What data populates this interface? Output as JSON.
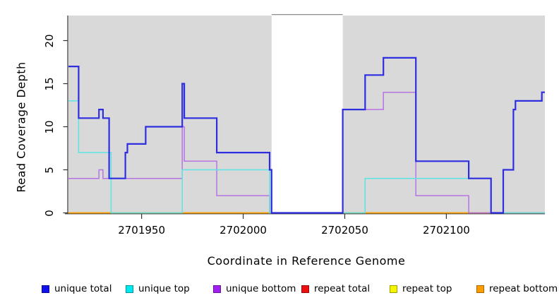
{
  "chart_data": {
    "type": "line",
    "subtype": "step-after",
    "title": "",
    "xlabel": "Coordinate in Reference Genome",
    "ylabel": "Read Coverage Depth",
    "x_range": [
      2701914,
      2702148.5
    ],
    "ylim": [
      0,
      23
    ],
    "x_ticks": [
      2701950,
      2702000,
      2702050,
      2702100
    ],
    "y_ticks": [
      0,
      5,
      10,
      15,
      20
    ],
    "grid": false,
    "panel_bg": "#d9d9d9",
    "axis_color": "#333333",
    "highlight_band": {
      "x_start": 2702014,
      "x_end": 2702049,
      "color": "#ffffff",
      "border_color": "#8c8c8c"
    },
    "draw_order": [
      "repeat total",
      "repeat top",
      "repeat bottom",
      "unique bottom",
      "unique top",
      "unique total"
    ],
    "series": [
      {
        "name": "unique total",
        "color": "#2e2ee0",
        "line_width": 2.2,
        "steps": [
          [
            2701914,
            17
          ],
          [
            2701919,
            11
          ],
          [
            2701929,
            12
          ],
          [
            2701931,
            11
          ],
          [
            2701934,
            4
          ],
          [
            2701942,
            7
          ],
          [
            2701943,
            8
          ],
          [
            2701952,
            10
          ],
          [
            2701970,
            15
          ],
          [
            2701971,
            11
          ],
          [
            2701987,
            7
          ],
          [
            2702013,
            5
          ],
          [
            2702014,
            0
          ],
          [
            2702049,
            12
          ],
          [
            2702060,
            16
          ],
          [
            2702069,
            18
          ],
          [
            2702085,
            6
          ],
          [
            2702111,
            4
          ],
          [
            2702122,
            0
          ],
          [
            2702128,
            5
          ],
          [
            2702133,
            12
          ],
          [
            2702134,
            13
          ],
          [
            2702147,
            14
          ]
        ]
      },
      {
        "name": "unique top",
        "color": "#5ce4e4",
        "line_width": 1.5,
        "steps": [
          [
            2701914,
            13
          ],
          [
            2701919,
            7
          ],
          [
            2701935,
            0
          ],
          [
            2701970,
            5
          ],
          [
            2702013,
            0
          ],
          [
            2702060,
            4
          ],
          [
            2702122,
            0
          ]
        ]
      },
      {
        "name": "unique bottom",
        "color": "#b673e4",
        "line_width": 1.5,
        "steps": [
          [
            2701914,
            4
          ],
          [
            2701929,
            5
          ],
          [
            2701931,
            4
          ],
          [
            2701970,
            10
          ],
          [
            2701971,
            6
          ],
          [
            2701987,
            2
          ],
          [
            2702013,
            0
          ],
          [
            2702049,
            12
          ],
          [
            2702069,
            14
          ],
          [
            2702085,
            2
          ],
          [
            2702111,
            0
          ]
        ]
      },
      {
        "name": "repeat total",
        "color": "#e02020",
        "line_width": 1.5,
        "steps": [
          [
            2701914,
            0
          ]
        ]
      },
      {
        "name": "repeat top",
        "color": "#f0f020",
        "line_width": 1.5,
        "steps": [
          [
            2701914,
            0
          ]
        ]
      },
      {
        "name": "repeat bottom",
        "color": "#ff9e00",
        "line_width": 1.5,
        "steps": [
          [
            2701914,
            0
          ]
        ]
      }
    ],
    "legend": {
      "position": "bottom",
      "items": [
        {
          "label": "unique total",
          "color": "#1111ee"
        },
        {
          "label": "unique top",
          "color": "#00e8f0"
        },
        {
          "label": "unique bottom",
          "color": "#a020f0"
        },
        {
          "label": "repeat total",
          "color": "#ee1010"
        },
        {
          "label": "repeat top",
          "color": "#f5f500"
        },
        {
          "label": "repeat bottom",
          "color": "#ff9d00"
        }
      ]
    }
  }
}
